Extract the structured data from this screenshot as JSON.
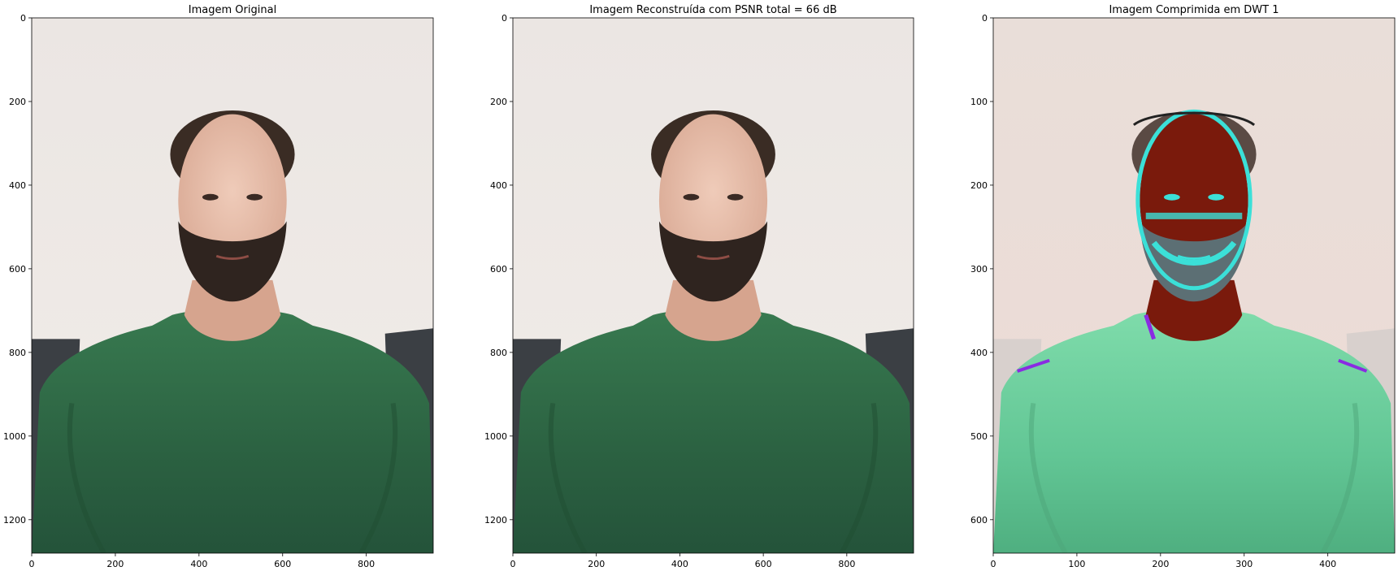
{
  "chart_data": [
    {
      "type": "image",
      "title": "Imagem Original",
      "xlim": [
        0,
        960
      ],
      "ylim": [
        1280,
        0
      ],
      "xticks": [
        0,
        200,
        400,
        600,
        800
      ],
      "yticks": [
        0,
        200,
        400,
        600,
        800,
        1000,
        1200
      ],
      "variant": "original",
      "content": "photo"
    },
    {
      "type": "image",
      "title": "Imagem Reconstruída com PSNR total = 66 dB",
      "xlim": [
        0,
        960
      ],
      "ylim": [
        1280,
        0
      ],
      "xticks": [
        0,
        200,
        400,
        600,
        800
      ],
      "yticks": [
        0,
        200,
        400,
        600,
        800,
        1000,
        1200
      ],
      "variant": "reconstructed",
      "content": "photo"
    },
    {
      "type": "image",
      "title": "Imagem Comprimida em DWT 1",
      "xlim": [
        0,
        480
      ],
      "ylim": [
        640,
        0
      ],
      "xticks": [
        0,
        100,
        200,
        300,
        400
      ],
      "yticks": [
        0,
        100,
        200,
        300,
        400,
        500,
        600
      ],
      "variant": "dwt",
      "content": "photo"
    }
  ],
  "colors": {
    "wall": "#ece7e3",
    "wall_pink": "#eedbd6",
    "shirt": "#2f6a45",
    "shirt_dark": "#1f4d31",
    "skin": "#e8c4b2",
    "hair": "#3a2c24",
    "sofa": "#3b3f44",
    "dwt_skin": "#7a1a0c",
    "dwt_cyan": "#3be0d8",
    "dwt_purple": "#8a2be2",
    "dwt_shirt": "#6fd3a0"
  }
}
